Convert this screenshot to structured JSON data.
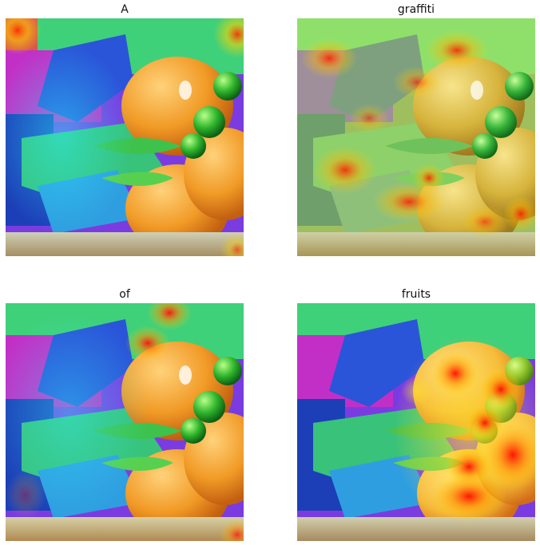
{
  "panels": [
    {
      "title": "A"
    },
    {
      "title": "graffiti"
    },
    {
      "title": "of"
    },
    {
      "title": "fruits"
    }
  ]
}
